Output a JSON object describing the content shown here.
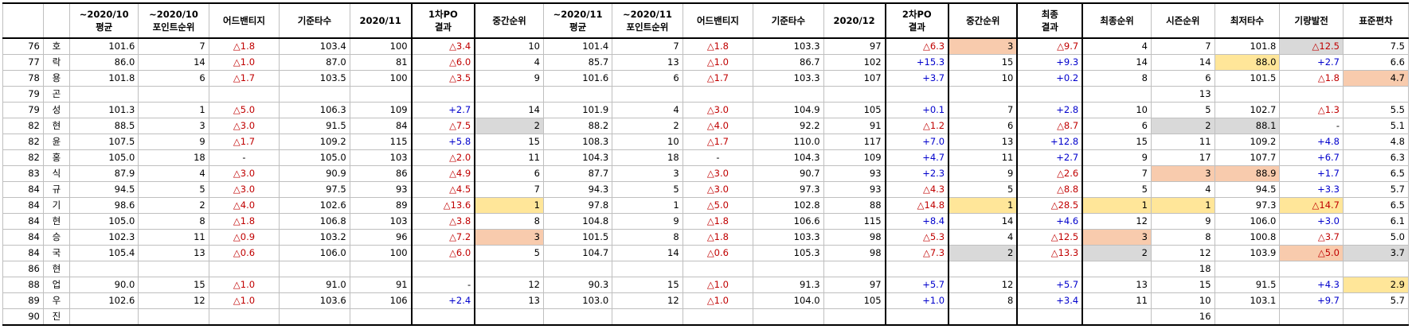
{
  "columns": [
    {
      "key": "rank",
      "label": ""
    },
    {
      "key": "name",
      "label": ""
    },
    {
      "key": "a1",
      "label": "~2020/10\n평균"
    },
    {
      "key": "a2",
      "label": "~2020/10\n포인트순위"
    },
    {
      "key": "a3",
      "label": "어드밴티지"
    },
    {
      "key": "a4",
      "label": "기준타수"
    },
    {
      "key": "a5",
      "label": "2020/11"
    },
    {
      "key": "a6",
      "label": "1차PO\n결과"
    },
    {
      "key": "a7",
      "label": "중간순위"
    },
    {
      "key": "b1",
      "label": "~2020/11\n평균"
    },
    {
      "key": "b2",
      "label": "~2020/11\n포인트순위"
    },
    {
      "key": "b3",
      "label": "어드밴티지"
    },
    {
      "key": "b4",
      "label": "기준타수"
    },
    {
      "key": "b5",
      "label": "2020/12"
    },
    {
      "key": "b6",
      "label": "2차PO\n결과"
    },
    {
      "key": "b7",
      "label": "중간순위"
    },
    {
      "key": "c1",
      "label": "최종\n결과"
    },
    {
      "key": "c2",
      "label": "최종순위"
    },
    {
      "key": "c3",
      "label": "시즌순위"
    },
    {
      "key": "c4",
      "label": "최저타수"
    },
    {
      "key": "c5",
      "label": "기량발전"
    },
    {
      "key": "c6",
      "label": "표준편차"
    }
  ],
  "colors": {
    "orange": "#f8cbad",
    "yellow": "#ffe699",
    "gray": "#d9d9d9",
    "red": "#c00000",
    "blue": "#0000cc"
  },
  "rows": [
    {
      "rank": "76",
      "name": "호",
      "a1": "101.6",
      "a2": "7",
      "a3": "△1.8",
      "a4": "103.4",
      "a5": "100",
      "a6": "△3.4",
      "a7": "10",
      "b1": "101.4",
      "b2": "7",
      "b3": "△1.8",
      "b4": "103.3",
      "b5": "97",
      "b6": "△6.3",
      "b7": "3",
      "c1": "△9.7",
      "c2": "4",
      "c3": "7",
      "c4": "101.8",
      "c5": "△12.5",
      "c6": "7.5",
      "hl": {
        "b7": "orange",
        "c5": "gray"
      }
    },
    {
      "rank": "77",
      "name": "락",
      "a1": "86.0",
      "a2": "14",
      "a3": "△1.0",
      "a4": "87.0",
      "a5": "81",
      "a6": "△6.0",
      "a7": "4",
      "b1": "85.7",
      "b2": "13",
      "b3": "△1.0",
      "b4": "86.7",
      "b5": "102",
      "b6": "+15.3",
      "b7": "15",
      "c1": "+9.3",
      "c2": "14",
      "c3": "14",
      "c4": "88.0",
      "c5": "+2.7",
      "c6": "6.6",
      "hl": {
        "c4": "yellow"
      }
    },
    {
      "rank": "78",
      "name": "용",
      "a1": "101.8",
      "a2": "6",
      "a3": "△1.7",
      "a4": "103.5",
      "a5": "100",
      "a6": "△3.5",
      "a7": "9",
      "b1": "101.6",
      "b2": "6",
      "b3": "△1.7",
      "b4": "103.3",
      "b5": "107",
      "b6": "+3.7",
      "b7": "10",
      "c1": "+0.2",
      "c2": "8",
      "c3": "6",
      "c4": "101.5",
      "c5": "△1.8",
      "c6": "4.7",
      "hl": {
        "c6": "orange"
      }
    },
    {
      "rank": "79",
      "name": "곤",
      "a1": "",
      "a2": "",
      "a3": "",
      "a4": "",
      "a5": "",
      "a6": "",
      "a7": "",
      "b1": "",
      "b2": "",
      "b3": "",
      "b4": "",
      "b5": "",
      "b6": "",
      "b7": "",
      "c1": "",
      "c2": "",
      "c3": "13",
      "c4": "",
      "c5": "",
      "c6": "",
      "hl": {}
    },
    {
      "rank": "79",
      "name": "성",
      "a1": "101.3",
      "a2": "1",
      "a3": "△5.0",
      "a4": "106.3",
      "a5": "109",
      "a6": "+2.7",
      "a7": "14",
      "b1": "101.9",
      "b2": "4",
      "b3": "△3.0",
      "b4": "104.9",
      "b5": "105",
      "b6": "+0.1",
      "b7": "7",
      "c1": "+2.8",
      "c2": "10",
      "c3": "5",
      "c4": "102.7",
      "c5": "△1.3",
      "c6": "5.5",
      "hl": {}
    },
    {
      "rank": "82",
      "name": "현",
      "a1": "88.5",
      "a2": "3",
      "a3": "△3.0",
      "a4": "91.5",
      "a5": "84",
      "a6": "△7.5",
      "a7": "2",
      "b1": "88.2",
      "b2": "2",
      "b3": "△4.0",
      "b4": "92.2",
      "b5": "91",
      "b6": "△1.2",
      "b7": "6",
      "c1": "△8.7",
      "c2": "6",
      "c3": "2",
      "c4": "88.1",
      "c5": "-",
      "c6": "5.1",
      "hl": {
        "a7": "gray",
        "c3": "gray",
        "c4": "gray"
      }
    },
    {
      "rank": "82",
      "name": "윤",
      "a1": "107.5",
      "a2": "9",
      "a3": "△1.7",
      "a4": "109.2",
      "a5": "115",
      "a6": "+5.8",
      "a7": "15",
      "b1": "108.3",
      "b2": "10",
      "b3": "△1.7",
      "b4": "110.0",
      "b5": "117",
      "b6": "+7.0",
      "b7": "13",
      "c1": "+12.8",
      "c2": "15",
      "c3": "11",
      "c4": "109.2",
      "c5": "+4.8",
      "c6": "4.8",
      "hl": {}
    },
    {
      "rank": "82",
      "name": "홍",
      "a1": "105.0",
      "a2": "18",
      "a3": "-",
      "a4": "105.0",
      "a5": "103",
      "a6": "△2.0",
      "a7": "11",
      "b1": "104.3",
      "b2": "18",
      "b3": "-",
      "b4": "104.3",
      "b5": "109",
      "b6": "+4.7",
      "b7": "11",
      "c1": "+2.7",
      "c2": "9",
      "c3": "17",
      "c4": "107.7",
      "c5": "+6.7",
      "c6": "6.3",
      "hl": {}
    },
    {
      "rank": "83",
      "name": "식",
      "a1": "87.9",
      "a2": "4",
      "a3": "△3.0",
      "a4": "90.9",
      "a5": "86",
      "a6": "△4.9",
      "a7": "6",
      "b1": "87.7",
      "b2": "3",
      "b3": "△3.0",
      "b4": "90.7",
      "b5": "93",
      "b6": "+2.3",
      "b7": "9",
      "c1": "△2.6",
      "c2": "7",
      "c3": "3",
      "c4": "88.9",
      "c5": "+1.7",
      "c6": "6.5",
      "hl": {
        "c3": "orange",
        "c4": "orange"
      }
    },
    {
      "rank": "84",
      "name": "규",
      "a1": "94.5",
      "a2": "5",
      "a3": "△3.0",
      "a4": "97.5",
      "a5": "93",
      "a6": "△4.5",
      "a7": "7",
      "b1": "94.3",
      "b2": "5",
      "b3": "△3.0",
      "b4": "97.3",
      "b5": "93",
      "b6": "△4.3",
      "b7": "5",
      "c1": "△8.8",
      "c2": "5",
      "c3": "4",
      "c4": "94.5",
      "c5": "+3.3",
      "c6": "5.7",
      "hl": {}
    },
    {
      "rank": "84",
      "name": "기",
      "a1": "98.6",
      "a2": "2",
      "a3": "△4.0",
      "a4": "102.6",
      "a5": "89",
      "a6": "△13.6",
      "a7": "1",
      "b1": "97.8",
      "b2": "1",
      "b3": "△5.0",
      "b4": "102.8",
      "b5": "88",
      "b6": "△14.8",
      "b7": "1",
      "c1": "△28.5",
      "c2": "1",
      "c3": "1",
      "c4": "97.3",
      "c5": "△14.7",
      "c6": "6.5",
      "hl": {
        "a7": "yellow",
        "b7": "yellow",
        "c2": "yellow",
        "c3": "yellow",
        "c5": "yellow"
      }
    },
    {
      "rank": "84",
      "name": "현",
      "a1": "105.0",
      "a2": "8",
      "a3": "△1.8",
      "a4": "106.8",
      "a5": "103",
      "a6": "△3.8",
      "a7": "8",
      "b1": "104.8",
      "b2": "9",
      "b3": "△1.8",
      "b4": "106.6",
      "b5": "115",
      "b6": "+8.4",
      "b7": "14",
      "c1": "+4.6",
      "c2": "12",
      "c3": "9",
      "c4": "106.0",
      "c5": "+3.0",
      "c6": "6.1",
      "hl": {}
    },
    {
      "rank": "84",
      "name": "승",
      "a1": "102.3",
      "a2": "11",
      "a3": "△0.9",
      "a4": "103.2",
      "a5": "96",
      "a6": "△7.2",
      "a7": "3",
      "b1": "101.5",
      "b2": "8",
      "b3": "△1.8",
      "b4": "103.3",
      "b5": "98",
      "b6": "△5.3",
      "b7": "4",
      "c1": "△12.5",
      "c2": "3",
      "c3": "8",
      "c4": "100.8",
      "c5": "△3.7",
      "c6": "5.0",
      "hl": {
        "a7": "orange",
        "c2": "orange"
      }
    },
    {
      "rank": "84",
      "name": "국",
      "a1": "105.4",
      "a2": "13",
      "a3": "△0.6",
      "a4": "106.0",
      "a5": "100",
      "a6": "△6.0",
      "a7": "5",
      "b1": "104.7",
      "b2": "14",
      "b3": "△0.6",
      "b4": "105.3",
      "b5": "98",
      "b6": "△7.3",
      "b7": "2",
      "c1": "△13.3",
      "c2": "2",
      "c3": "12",
      "c4": "103.9",
      "c5": "△5.0",
      "c6": "3.7",
      "hl": {
        "b7": "gray",
        "c2": "gray",
        "c5": "orange",
        "c6": "gray"
      }
    },
    {
      "rank": "86",
      "name": "현",
      "a1": "",
      "a2": "",
      "a3": "",
      "a4": "",
      "a5": "",
      "a6": "",
      "a7": "",
      "b1": "",
      "b2": "",
      "b3": "",
      "b4": "",
      "b5": "",
      "b6": "",
      "b7": "",
      "c1": "",
      "c2": "",
      "c3": "18",
      "c4": "",
      "c5": "",
      "c6": "",
      "hl": {}
    },
    {
      "rank": "88",
      "name": "업",
      "a1": "90.0",
      "a2": "15",
      "a3": "△1.0",
      "a4": "91.0",
      "a5": "91",
      "a6": "-",
      "a7": "12",
      "b1": "90.3",
      "b2": "15",
      "b3": "△1.0",
      "b4": "91.3",
      "b5": "97",
      "b6": "+5.7",
      "b7": "12",
      "c1": "+5.7",
      "c2": "13",
      "c3": "15",
      "c4": "91.5",
      "c5": "+4.3",
      "c6": "2.9",
      "hl": {
        "c6": "yellow"
      }
    },
    {
      "rank": "89",
      "name": "우",
      "a1": "102.6",
      "a2": "12",
      "a3": "△1.0",
      "a4": "103.6",
      "a5": "106",
      "a6": "+2.4",
      "a7": "13",
      "b1": "103.0",
      "b2": "12",
      "b3": "△1.0",
      "b4": "104.0",
      "b5": "105",
      "b6": "+1.0",
      "b7": "8",
      "c1": "+3.4",
      "c2": "11",
      "c3": "10",
      "c4": "103.1",
      "c5": "+9.7",
      "c6": "5.7",
      "hl": {}
    },
    {
      "rank": "90",
      "name": "진",
      "a1": "",
      "a2": "",
      "a3": "",
      "a4": "",
      "a5": "",
      "a6": "",
      "a7": "",
      "b1": "",
      "b2": "",
      "b3": "",
      "b4": "",
      "b5": "",
      "b6": "",
      "b7": "",
      "c1": "",
      "c2": "",
      "c3": "16",
      "c4": "",
      "c5": "",
      "c6": "",
      "hl": {}
    }
  ]
}
